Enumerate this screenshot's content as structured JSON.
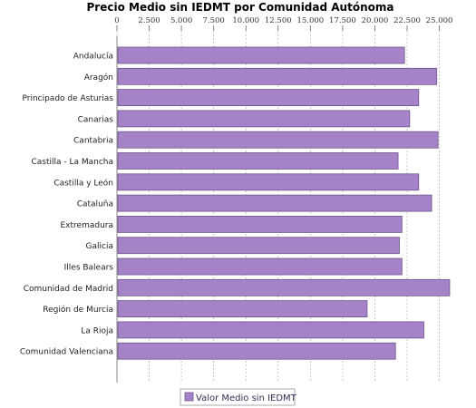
{
  "chart_data": {
    "type": "bar",
    "orientation": "horizontal",
    "title": "Precio Medio sin IEDMT por Comunidad Autónoma",
    "xlabel": "",
    "ylabel": "",
    "xlim": [
      0,
      27000
    ],
    "ticks": [
      0,
      2500,
      5000,
      7500,
      10000,
      12500,
      15000,
      17500,
      20000,
      22500,
      25000
    ],
    "tick_labels": [
      "0",
      "2.500",
      "5.000",
      "7.500",
      "10.000",
      "12.500",
      "15.000",
      "17.500",
      "20.000",
      "22.500",
      "25.000"
    ],
    "grid": true,
    "legend_position": "bottom",
    "bar_color": "#a683c9",
    "bar_edge_color": "#6b5488",
    "categories": [
      "Andalucía",
      "Aragón",
      "Principado de Asturias",
      "Canarias",
      "Cantabria",
      "Castilla - La Mancha",
      "Castilla y León",
      "Cataluña",
      "Extremadura",
      "Galicia",
      "Illes Balears",
      "Comunidad de Madrid",
      "Región de Murcia",
      "La Rioja",
      "Comunidad Valenciana"
    ],
    "series": [
      {
        "name": "Valor Medio sin IEDMT",
        "values": [
          22300,
          24800,
          23400,
          22700,
          24900,
          21800,
          23400,
          24400,
          22100,
          21900,
          22100,
          25800,
          19400,
          23800,
          21600
        ]
      }
    ]
  }
}
